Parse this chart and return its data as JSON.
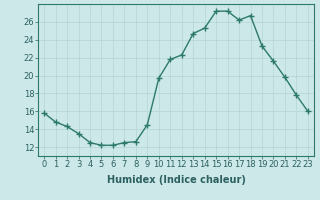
{
  "title": "",
  "xlabel": "Humidex (Indice chaleur)",
  "x": [
    0,
    1,
    2,
    3,
    4,
    5,
    6,
    7,
    8,
    9,
    10,
    11,
    12,
    13,
    14,
    15,
    16,
    17,
    18,
    19,
    20,
    21,
    22,
    23
  ],
  "y": [
    15.8,
    14.8,
    14.3,
    13.5,
    12.5,
    12.2,
    12.2,
    12.5,
    12.6,
    14.5,
    19.7,
    21.8,
    22.3,
    24.7,
    25.3,
    27.2,
    27.2,
    26.2,
    26.7,
    23.3,
    21.6,
    19.8,
    17.8,
    16.0
  ],
  "line_color": "#2d7a6a",
  "bg_color": "#cce8e8",
  "grid_color": "#b8d8d8",
  "ylim": [
    11,
    28
  ],
  "yticks": [
    12,
    14,
    16,
    18,
    20,
    22,
    24,
    26
  ],
  "xlim": [
    -0.5,
    23.5
  ],
  "tick_fontsize": 6,
  "label_fontsize": 7,
  "marker": "+",
  "markersize": 4,
  "linewidth": 1.0
}
